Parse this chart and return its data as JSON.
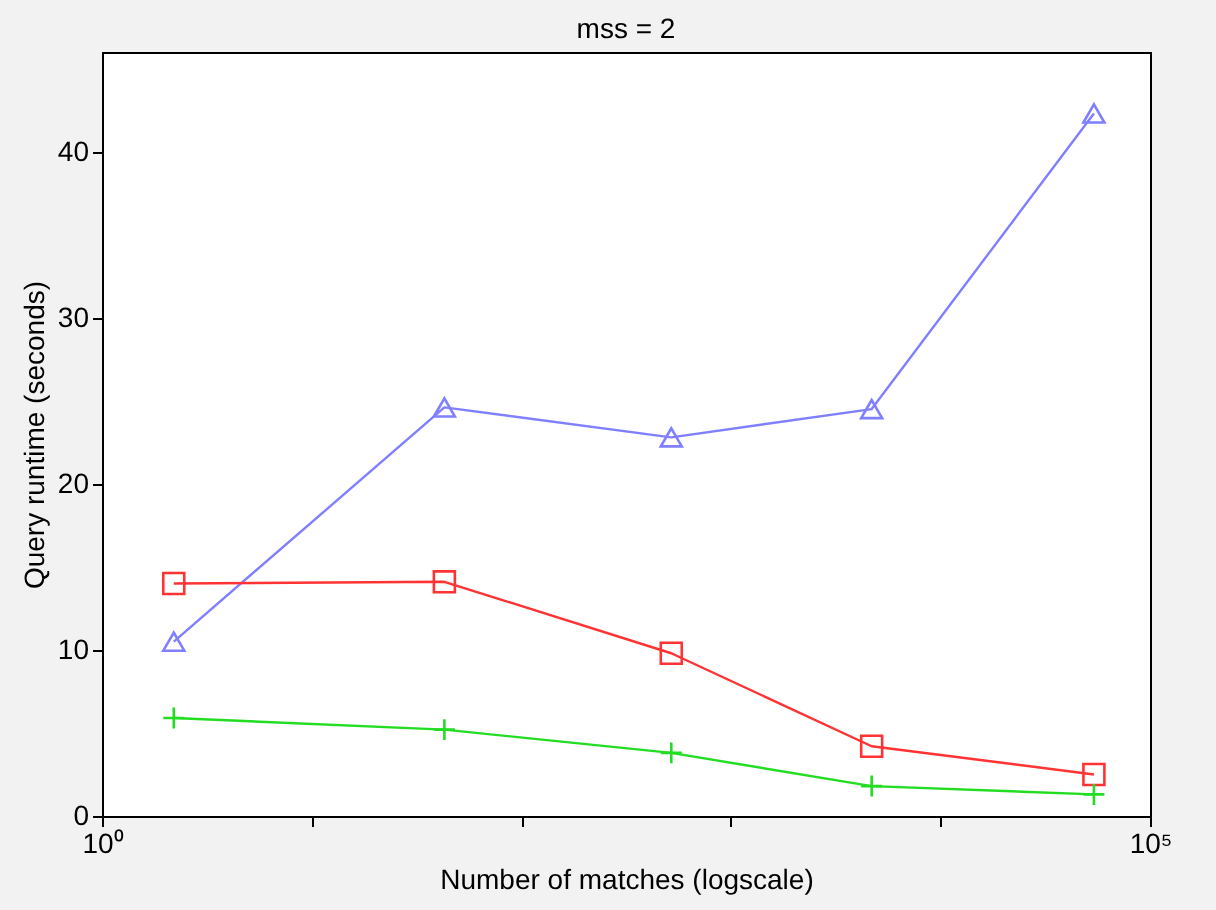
{
  "chart_data": {
    "type": "line",
    "title": "mss = 2",
    "xlabel": "Number of matches (logscale)",
    "ylabel": "Query runtime (seconds)",
    "x": [
      2.2,
      43,
      520,
      4700,
      54000
    ],
    "series": [
      {
        "color": "#7f7fff",
        "marker": "triangle",
        "values": [
          10.5,
          24.6,
          22.8,
          24.5,
          42.3
        ]
      },
      {
        "color": "#ff3333",
        "marker": "square",
        "values": [
          14.0,
          14.1,
          9.8,
          4.2,
          2.5
        ]
      },
      {
        "color": "#22dd22",
        "marker": "cross",
        "values": [
          5.9,
          5.2,
          3.8,
          1.8,
          1.3
        ]
      }
    ],
    "log": "x",
    "xlim": [
      1,
      100000
    ],
    "xticks": [
      {
        "value": 1,
        "label": "10⁰"
      },
      {
        "value": 10,
        "label": null
      },
      {
        "value": 100,
        "label": null
      },
      {
        "value": 1000,
        "label": null
      },
      {
        "value": 10000,
        "label": null
      },
      {
        "value": 100000,
        "label": "10⁵"
      }
    ],
    "ylim": [
      0,
      46
    ],
    "yticks": [
      0,
      10,
      20,
      30,
      40
    ],
    "grid": false,
    "line_style": "solid"
  }
}
